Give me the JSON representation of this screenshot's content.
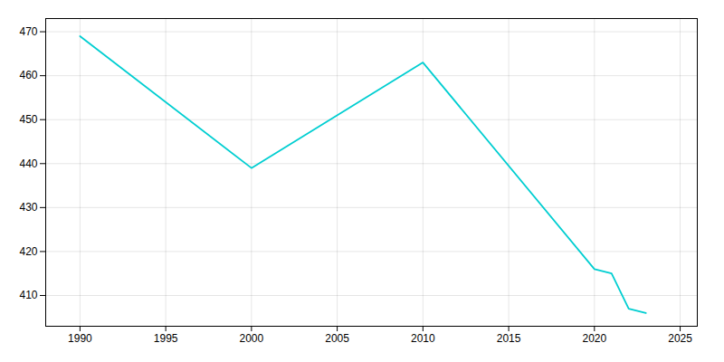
{
  "chart_data": {
    "type": "line",
    "x": [
      1990,
      2000,
      2010,
      2020,
      2021,
      2022,
      2023
    ],
    "values": [
      469,
      439,
      463,
      416,
      415,
      407,
      406
    ],
    "color": "#00CED1",
    "xlim": [
      1988,
      2026
    ],
    "ylim": [
      403,
      473
    ],
    "xticks": [
      1990,
      1995,
      2000,
      2005,
      2010,
      2015,
      2020,
      2025
    ],
    "yticks": [
      410,
      420,
      430,
      440,
      450,
      460,
      470
    ],
    "grid": true
  }
}
